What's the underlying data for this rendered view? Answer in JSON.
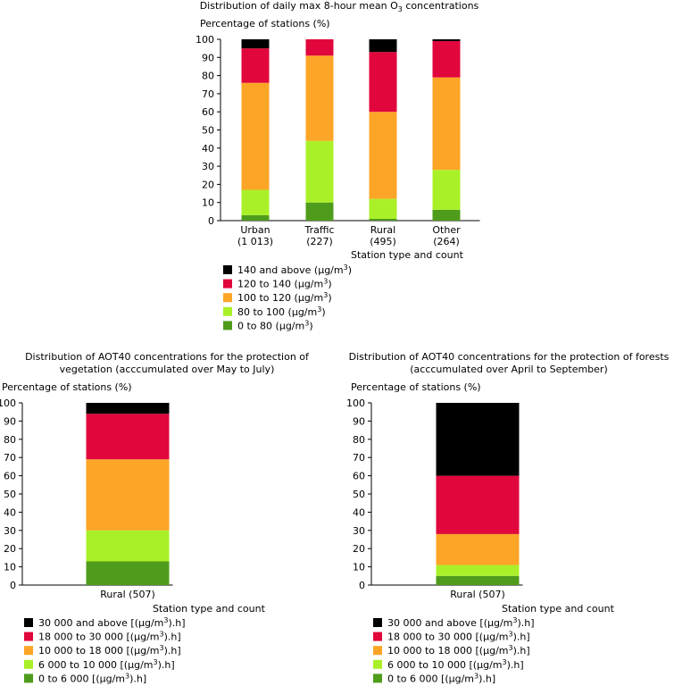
{
  "chart_data": [
    {
      "type": "bar",
      "stacked": true,
      "title": "Distribution of daily max 8-hour mean O3 concentrations",
      "ylabel": "Percentage of stations (%)",
      "xlabel": "Station type and count",
      "ylim": [
        0,
        100
      ],
      "yticks": [
        0,
        10,
        20,
        30,
        40,
        50,
        60,
        70,
        80,
        90,
        100
      ],
      "categories": [
        {
          "name": "Urban",
          "count": "(1 013)"
        },
        {
          "name": "Traffic",
          "count": "(227)"
        },
        {
          "name": "Rural",
          "count": "(495)"
        },
        {
          "name": "Other",
          "count": "(264)"
        }
      ],
      "series": [
        {
          "name": "0 to 80 (µg/m3)",
          "color": "#4f9c1c",
          "values": [
            3,
            10,
            1,
            6
          ]
        },
        {
          "name": "80 to 100 (µg/m3)",
          "color": "#aaf028",
          "values": [
            14,
            34,
            11,
            22
          ]
        },
        {
          "name": "100 to 120 (µg/m3)",
          "color": "#fca526",
          "values": [
            59,
            47,
            48,
            51
          ]
        },
        {
          "name": "120 to 140 (µg/m3)",
          "color": "#e1063c",
          "values": [
            19,
            9,
            33,
            20
          ]
        },
        {
          "name": "140 and above (µg/m3)",
          "color": "#000000",
          "values": [
            5,
            0,
            7,
            1
          ]
        }
      ],
      "legend": [
        {
          "text": "140 and above (µg/m",
          "sup": "3",
          "tail": ")",
          "color": "#000000"
        },
        {
          "text": "120 to 140 (µg/m",
          "sup": "3",
          "tail": ")",
          "color": "#e1063c"
        },
        {
          "text": "100 to 120 (µg/m",
          "sup": "3",
          "tail": ")",
          "color": "#fca526"
        },
        {
          "text": "80 to 100 (µg/m",
          "sup": "3",
          "tail": ")",
          "color": "#aaf028"
        },
        {
          "text": "0 to 80 (µg/m",
          "sup": "3",
          "tail": ")",
          "color": "#4f9c1c"
        }
      ]
    },
    {
      "type": "bar",
      "stacked": true,
      "title": [
        "Distribution of AOT40 concentrations for the protection of",
        "vegetation (acccumulated over May to July)"
      ],
      "ylabel": "Percentage of stations (%)",
      "xlabel": "Station type and count",
      "ylim": [
        0,
        100
      ],
      "yticks": [
        0,
        10,
        20,
        30,
        40,
        50,
        60,
        70,
        80,
        90,
        100
      ],
      "categories": [
        {
          "name": "Rural (507)",
          "count": ""
        }
      ],
      "series": [
        {
          "name": "0 to 6 000 [(µg/m3).h]",
          "color": "#4f9c1c",
          "values": [
            13
          ]
        },
        {
          "name": "6 000 to 10 000 [(µg/m3).h]",
          "color": "#aaf028",
          "values": [
            17
          ]
        },
        {
          "name": "10 000 to 18 000 [(µg/m3).h]",
          "color": "#fca526",
          "values": [
            39
          ]
        },
        {
          "name": "18 000 to 30 000 [(µg/m3).h]",
          "color": "#e1063c",
          "values": [
            25
          ]
        },
        {
          "name": "30 000 and above [(µg/m3).h]",
          "color": "#000000",
          "values": [
            6
          ]
        }
      ],
      "legend": [
        {
          "text": "30 000 and above [(µg/m",
          "sup": "3",
          "tail": ").h]",
          "color": "#000000"
        },
        {
          "text": "18 000 to 30 000 [(µg/m",
          "sup": "3",
          "tail": ").h]",
          "color": "#e1063c"
        },
        {
          "text": "10 000 to 18 000 [(µg/m",
          "sup": "3",
          "tail": ").h]",
          "color": "#fca526"
        },
        {
          "text": "6 000 to 10 000 [(µg/m",
          "sup": "3",
          "tail": ").h]",
          "color": "#aaf028"
        },
        {
          "text": "0 to 6 000 [(µg/m",
          "sup": "3",
          "tail": ").h]",
          "color": "#4f9c1c"
        }
      ]
    },
    {
      "type": "bar",
      "stacked": true,
      "title": [
        "Distribution of AOT40 concentrations for the protection of forests",
        "(acccumulated over April to September)"
      ],
      "ylabel": "Percentage of stations (%)",
      "xlabel": "Station type and count",
      "ylim": [
        0,
        100
      ],
      "yticks": [
        0,
        10,
        20,
        30,
        40,
        50,
        60,
        70,
        80,
        90,
        100
      ],
      "categories": [
        {
          "name": "Rural (507)",
          "count": ""
        }
      ],
      "series": [
        {
          "name": "0 to 6 000 [(µg/m3).h]",
          "color": "#4f9c1c",
          "values": [
            5
          ]
        },
        {
          "name": "6 000 to 10 000 [(µg/m3).h]",
          "color": "#aaf028",
          "values": [
            6
          ]
        },
        {
          "name": "10 000 to 18 000 [(µg/m3).h]",
          "color": "#fca526",
          "values": [
            17
          ]
        },
        {
          "name": "18 000 to 30 000 [(µg/m3).h]",
          "color": "#e1063c",
          "values": [
            32
          ]
        },
        {
          "name": "30 000 and above [(µg/m3).h]",
          "color": "#000000",
          "values": [
            40
          ]
        }
      ],
      "legend": [
        {
          "text": "30 000 and above [(µg/m",
          "sup": "3",
          "tail": ").h]",
          "color": "#000000"
        },
        {
          "text": "18 000 to 30 000 [(µg/m",
          "sup": "3",
          "tail": ").h]",
          "color": "#e1063c"
        },
        {
          "text": "10 000 to 18 000 [(µg/m",
          "sup": "3",
          "tail": ").h]",
          "color": "#fca526"
        },
        {
          "text": "6 000 to 10 000 [(µg/m",
          "sup": "3",
          "tail": ").h]",
          "color": "#aaf028"
        },
        {
          "text": "0 to 6 000 [(µg/m",
          "sup": "3",
          "tail": ").h]",
          "color": "#4f9c1c"
        }
      ]
    }
  ]
}
